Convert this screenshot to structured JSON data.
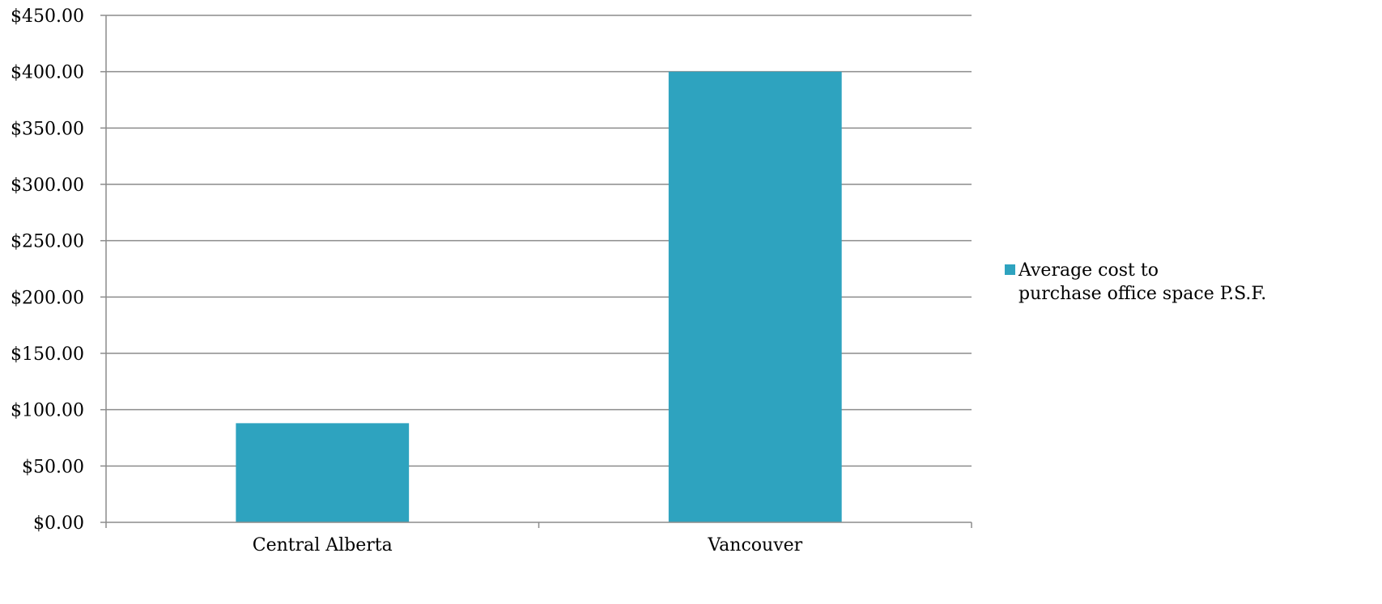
{
  "chart_data": {
    "type": "bar",
    "title": "",
    "xlabel": "",
    "ylabel": "",
    "categories": [
      "Central Alberta",
      "Vancouver"
    ],
    "series": [
      {
        "name": "Average cost to purchase office space P.S.F.",
        "values": [
          88,
          400
        ],
        "color": "#2ea3bf"
      }
    ],
    "ylim": [
      0,
      450
    ],
    "y_tick_step": 50,
    "y_tick_labels": [
      "$0.00",
      "$50.00",
      "$100.00",
      "$150.00",
      "$200.00",
      "$250.00",
      "$300.00",
      "$350.00",
      "$400.00",
      "$450.00"
    ],
    "grid": true,
    "legend": {
      "position": "right",
      "lines": [
        "Average cost to",
        "purchase office space P.S.F."
      ]
    }
  }
}
